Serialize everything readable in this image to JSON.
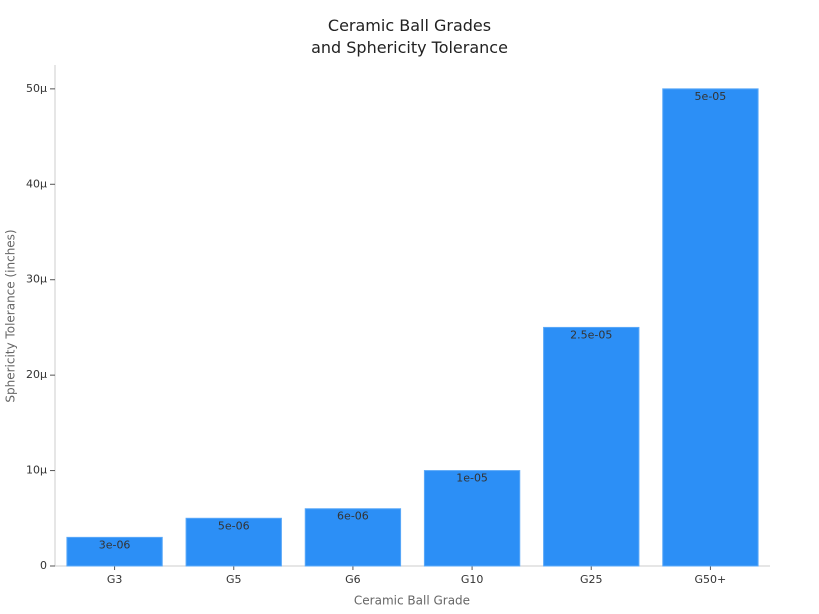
{
  "chart_data": {
    "type": "bar",
    "title": "Ceramic Ball Grades\nand Sphericity Tolerance",
    "x_label": "Ceramic Ball Grade",
    "y_label": "Sphericity Tolerance (inches)",
    "categories": [
      "G3",
      "G5",
      "G6",
      "G10",
      "G25",
      "G50+"
    ],
    "values": [
      3e-06,
      5e-06,
      6e-06,
      1e-05,
      2.5e-05,
      5e-05
    ],
    "value_labels": [
      "3e-06",
      "5e-06",
      "6e-06",
      "1e-05",
      "2.5e-05",
      "5e-05"
    ],
    "color": "#2c8ff6",
    "ylim": [
      0,
      5.25e-05
    ],
    "yticks": [
      0,
      {
        "value": 1e-05,
        "label": "10μ"
      },
      {
        "value": 2e-05,
        "label": "20μ"
      },
      {
        "value": 3e-05,
        "label": "30μ"
      },
      {
        "value": 4e-05,
        "label": "40μ"
      },
      {
        "value": 5e-05,
        "label": "50μ"
      }
    ],
    "grid": false
  }
}
